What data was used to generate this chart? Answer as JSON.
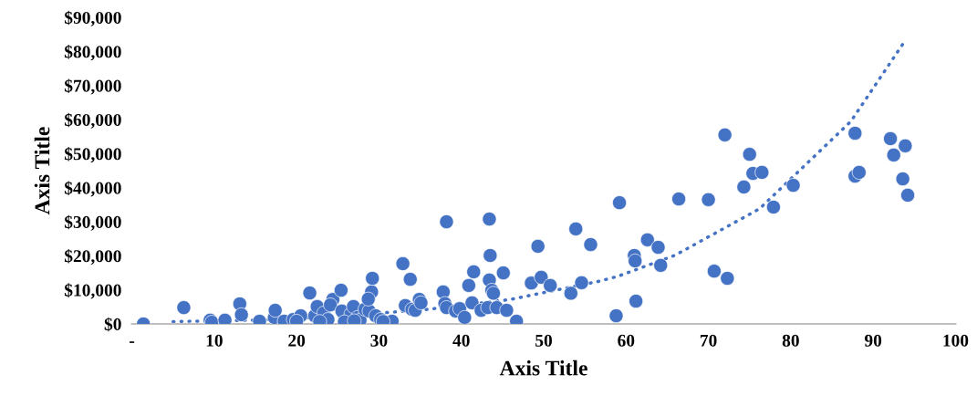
{
  "chart_data": {
    "type": "scatter",
    "xlabel": "Axis Title",
    "ylabel": "Axis Title",
    "xlim": [
      0,
      100
    ],
    "ylim": [
      0,
      90000
    ],
    "xticks": [
      {
        "value": 0,
        "label": "-"
      },
      10,
      20,
      30,
      40,
      50,
      60,
      70,
      80,
      90,
      100
    ],
    "yticks": [
      {
        "value": 0,
        "label": "$0"
      },
      {
        "value": 10000,
        "label": "$10,000"
      },
      {
        "value": 20000,
        "label": "$20,000"
      },
      {
        "value": 30000,
        "label": "$30,000"
      },
      {
        "value": 40000,
        "label": "$40,000"
      },
      {
        "value": 50000,
        "label": "$50,000"
      },
      {
        "value": 60000,
        "label": "$60,000"
      },
      {
        "value": 70000,
        "label": "$70,000"
      },
      {
        "value": 80000,
        "label": "$80,000"
      },
      {
        "value": 90000,
        "label": "$90,000"
      }
    ],
    "grid": false,
    "legend": false,
    "marker": "circle",
    "series": [
      {
        "color": "#4472c4",
        "x": [
          1.4,
          6.3,
          9.5,
          9.7,
          11.3,
          13.1,
          13.3,
          15.5,
          17.3,
          17.4,
          18.5,
          19.6,
          20.5,
          21.6,
          22.2,
          22.5,
          23.3,
          23.8,
          24.4,
          24.1,
          25.4,
          25.5,
          26.6,
          26.9,
          27.4,
          27.7,
          28.3,
          28.8,
          29.1,
          29.2,
          28.7,
          29.6,
          30.2,
          31.6,
          32.9,
          33.8,
          33.2,
          34.0,
          34.4,
          34.9,
          35.1,
          37.8,
          38.0,
          38.2,
          38.2,
          39.3,
          39.8,
          40.4,
          40.9,
          41.5,
          41.3,
          42.4,
          43.2,
          43.4,
          43.5,
          43.4,
          43.7,
          43.9,
          44.3,
          45.1,
          45.5,
          46.7,
          48.5,
          49.3,
          49.7,
          50.8,
          53.3,
          53.9,
          54.6,
          55.7,
          58.8,
          59.2,
          61.0,
          61.1,
          61.2,
          62.6,
          63.9,
          64.2,
          66.4,
          70.0,
          70.7,
          72.0,
          72.3,
          74.3,
          75.0,
          75.4,
          76.5,
          77.9,
          80.3,
          87.8,
          87.8,
          88.3,
          92.1,
          92.5,
          93.6,
          93.9,
          94.2,
          20.0,
          22.8,
          25.8,
          27.0,
          30.5
        ],
        "values": [
          0,
          4800,
          1100,
          500,
          1100,
          5900,
          2700,
          800,
          1900,
          4000,
          800,
          1300,
          2400,
          9100,
          2400,
          5100,
          3200,
          1300,
          7200,
          5600,
          9900,
          3800,
          2900,
          5100,
          1900,
          1100,
          4300,
          3800,
          9400,
          13400,
          7300,
          2400,
          1300,
          800,
          17700,
          13100,
          5400,
          4300,
          4000,
          7200,
          6200,
          9400,
          6000,
          30000,
          4800,
          3800,
          4500,
          1900,
          11300,
          15300,
          6200,
          4000,
          4800,
          30800,
          20100,
          12900,
          9900,
          9000,
          4800,
          15000,
          4000,
          800,
          12000,
          22800,
          13700,
          11300,
          9000,
          27900,
          12100,
          23300,
          2400,
          35600,
          20100,
          18500,
          6700,
          24700,
          22500,
          17200,
          36700,
          36500,
          15500,
          55500,
          13400,
          40200,
          49800,
          44200,
          44500,
          34300,
          40700,
          56000,
          43400,
          44500,
          54400,
          49600,
          42600,
          52300,
          37800,
          800,
          700,
          600,
          900,
          700
        ]
      },
      {
        "type": "line",
        "color": "#4472c4",
        "line_style": "dotted",
        "marker": "none",
        "x": [
          5,
          7.5,
          15,
          25,
          36,
          46,
          56.3,
          58.9,
          65.9,
          76.2,
          87.3,
          94
        ],
        "values": [
          700,
          800,
          1100,
          2200,
          4300,
          7200,
          12300,
          13900,
          20100,
          33800,
          59500,
          83600
        ]
      }
    ]
  }
}
